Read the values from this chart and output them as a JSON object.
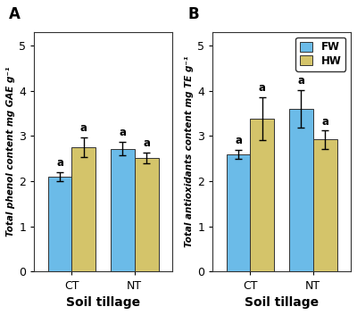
{
  "panel_A": {
    "title": "A",
    "ylabel": "Total phenol content mg GAE g⁻¹",
    "xlabel": "Soil tillage",
    "categories": [
      "CT",
      "NT"
    ],
    "FW_values": [
      2.1,
      2.72
    ],
    "HW_values": [
      2.75,
      2.52
    ],
    "FW_errors": [
      0.1,
      0.15
    ],
    "HW_errors": [
      0.22,
      0.12
    ],
    "ylim": [
      0,
      5.3
    ],
    "yticks": [
      0,
      1,
      2,
      3,
      4,
      5
    ],
    "sig_labels_FW": [
      "a",
      "a"
    ],
    "sig_labels_HW": [
      "a",
      "a"
    ]
  },
  "panel_B": {
    "title": "B",
    "ylabel": "Total antioxidants content mg TE g⁻¹",
    "xlabel": "Soil tillage",
    "categories": [
      "CT",
      "NT"
    ],
    "FW_values": [
      2.6,
      3.6
    ],
    "HW_values": [
      3.38,
      2.92
    ],
    "FW_errors": [
      0.1,
      0.42
    ],
    "HW_errors": [
      0.48,
      0.2
    ],
    "ylim": [
      0,
      5.3
    ],
    "yticks": [
      0,
      1,
      2,
      3,
      4,
      5
    ],
    "sig_labels_FW": [
      "a",
      "a"
    ],
    "sig_labels_HW": [
      "a",
      "a"
    ]
  },
  "color_FW": "#6BBBE8",
  "color_HW": "#D4C46A",
  "bar_width": 0.38,
  "bar_edge_color": "#333333",
  "bar_edge_width": 0.7,
  "background_color": "#ffffff",
  "legend_labels": [
    "FW",
    "HW"
  ]
}
